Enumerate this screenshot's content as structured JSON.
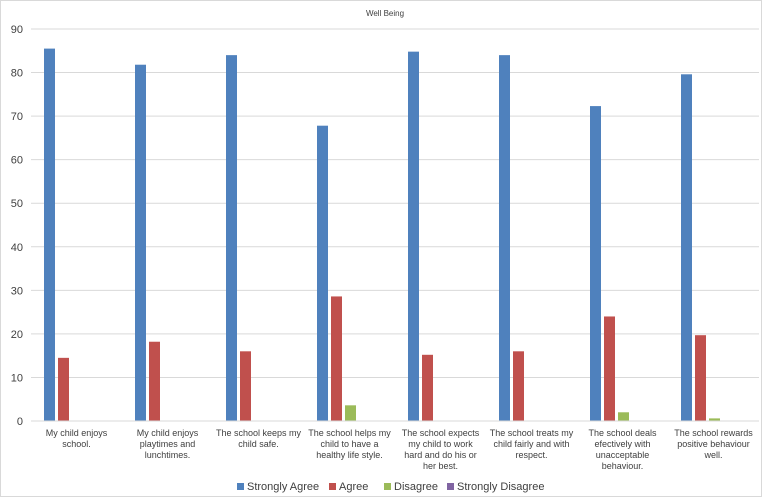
{
  "chart_data": {
    "type": "bar",
    "title": "Well Being",
    "xlabel": "",
    "ylabel": "",
    "ylim": [
      0,
      90
    ],
    "yticks": [
      "0",
      "10",
      "20",
      "30",
      "40",
      "50",
      "60",
      "70",
      "80",
      "90"
    ],
    "grid": true,
    "legend_position": "bottom",
    "categories": [
      [
        "My child enjoys",
        "school."
      ],
      [
        "My child enjoys",
        "playtimes and",
        "lunchtimes."
      ],
      [
        "The school keeps my",
        "child safe."
      ],
      [
        "The school helps my",
        "child to have a",
        "healthy life style."
      ],
      [
        "The school expects",
        "my child to work",
        "hard and do his or",
        "her best."
      ],
      [
        "The school treats my",
        "child fairly and with",
        "respect."
      ],
      [
        "The school deals",
        "efectively with",
        "unacceptable",
        "behaviour."
      ],
      [
        "The school rewards",
        "positive behaviour",
        "well."
      ]
    ],
    "series": [
      {
        "name": "Strongly Agree",
        "color": "#4f81bd",
        "values": [
          85.5,
          81.8,
          84.0,
          67.8,
          84.8,
          84.0,
          72.3,
          79.6
        ]
      },
      {
        "name": "Agree",
        "color": "#c0504d",
        "values": [
          14.5,
          18.2,
          16.0,
          28.6,
          15.2,
          16.0,
          24.0,
          19.7
        ]
      },
      {
        "name": "Disagree",
        "color": "#9bbb59",
        "values": [
          0,
          0,
          0,
          3.6,
          0,
          0,
          2.0,
          0.6
        ]
      },
      {
        "name": "Strongly Disagree",
        "color": "#8064a2",
        "values": [
          0,
          0,
          0,
          0,
          0,
          0,
          0,
          0
        ]
      }
    ]
  }
}
